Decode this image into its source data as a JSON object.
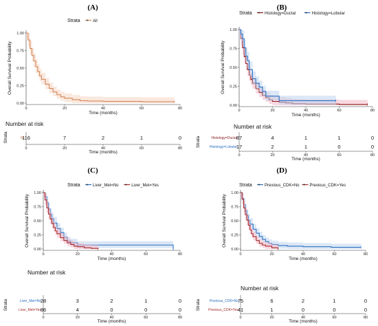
{
  "colors": {
    "all": "#D2875A",
    "ductal": "#8B1A1A",
    "lobular": "#2A6FC0",
    "no": "#2A6FC0",
    "yes": "#A52A2A",
    "ci_all": "#F5D5C2",
    "ci_red": "#F4B8C8",
    "ci_blue": "#BFD5F0"
  },
  "chart_data": [
    {
      "id": "A",
      "type": "line",
      "panel_label": "(A)",
      "xlabel": "Time (months)",
      "ylabel": "Overall Survival Probability",
      "xlim": [
        0,
        80
      ],
      "ylim": [
        0,
        1
      ],
      "xticks": [
        "0",
        "20",
        "40",
        "60",
        "80"
      ],
      "yticks": [
        "0.00",
        "0.25",
        "0.50",
        "0.75",
        "1.00"
      ],
      "legend_title": "Strata",
      "series": [
        {
          "name": "All",
          "color_key": "all",
          "ci_key": "ci_all",
          "x": [
            0,
            1,
            2,
            3,
            4,
            5,
            6,
            7,
            8,
            10,
            12,
            14,
            16,
            18,
            20,
            24,
            28,
            32,
            40,
            50,
            60,
            77
          ],
          "y": [
            1.0,
            0.9,
            0.78,
            0.68,
            0.6,
            0.52,
            0.45,
            0.39,
            0.34,
            0.27,
            0.21,
            0.16,
            0.12,
            0.09,
            0.07,
            0.05,
            0.035,
            0.03,
            0.025,
            0.025,
            0.02,
            0.02
          ]
        }
      ],
      "risk_table": {
        "title": "Number at risk",
        "strata_label": "Strata",
        "rows": [
          {
            "label": "All",
            "color_key": "all",
            "counts": [
              "116",
              "7",
              "2",
              "1",
              "0"
            ]
          }
        ],
        "xticks": [
          "0",
          "20",
          "40",
          "60",
          "80"
        ],
        "xlabel": "Time (months)"
      }
    },
    {
      "id": "B",
      "type": "line",
      "panel_label": "(B)",
      "xlabel": "Time (months)",
      "ylabel": "Overall Survival Probability",
      "xlim": [
        0,
        80
      ],
      "ylim": [
        0,
        1
      ],
      "xticks": [
        "0",
        "20",
        "40",
        "60",
        "80"
      ],
      "yticks": [
        "0.00",
        "0.25",
        "0.50",
        "0.75",
        "1.00"
      ],
      "legend_title": "Strata",
      "series": [
        {
          "name": "Histology=Ductal",
          "color_key": "ductal",
          "ci_key": "ci_red",
          "x": [
            0,
            1,
            2,
            3,
            4,
            5,
            6,
            7,
            8,
            10,
            12,
            14,
            16,
            18,
            20,
            24,
            28,
            32,
            40,
            60,
            77
          ],
          "y": [
            1.0,
            0.88,
            0.76,
            0.64,
            0.55,
            0.47,
            0.4,
            0.34,
            0.29,
            0.22,
            0.17,
            0.13,
            0.1,
            0.07,
            0.05,
            0.04,
            0.03,
            0.02,
            0.015,
            0.01,
            0.01
          ]
        },
        {
          "name": "Histology=Lobular",
          "color_key": "lobular",
          "ci_key": "ci_blue",
          "x": [
            0,
            1,
            2,
            3,
            4,
            5,
            6,
            8,
            10,
            12,
            14,
            16,
            20,
            24,
            28,
            58
          ],
          "y": [
            1.0,
            0.94,
            0.88,
            0.76,
            0.65,
            0.59,
            0.47,
            0.35,
            0.29,
            0.24,
            0.18,
            0.12,
            0.12,
            0.06,
            0.06,
            0.06
          ]
        }
      ],
      "risk_table": {
        "title": "Number at risk",
        "strata_label": "Strata",
        "rows": [
          {
            "label": "Histology=Ductal",
            "color_key": "ductal",
            "counts": [
              "87",
              "4",
              "1",
              "1",
              "0"
            ]
          },
          {
            "label": "Histology=Lobular",
            "color_key": "lobular",
            "counts": [
              "17",
              "2",
              "1",
              "0",
              "0"
            ]
          }
        ],
        "xticks": [
          "0",
          "20",
          "40",
          "60",
          "80"
        ],
        "xlabel": "Time (months)"
      }
    },
    {
      "id": "C",
      "type": "line",
      "panel_label": "(C)",
      "xlabel": "Time (months)",
      "ylabel": "Overall Survival Probability",
      "xlim": [
        0,
        80
      ],
      "ylim": [
        0,
        1
      ],
      "xticks": [
        "0",
        "20",
        "40",
        "60",
        "80"
      ],
      "yticks": [
        "0.00",
        "0.25",
        "0.50",
        "0.75",
        "1.00"
      ],
      "legend_title": "Strata",
      "series": [
        {
          "name": "Liver_Met=No",
          "color_key": "no",
          "ci_key": "ci_blue",
          "x": [
            0,
            1,
            2,
            3,
            4,
            5,
            6,
            8,
            10,
            12,
            14,
            16,
            20,
            24,
            30,
            58,
            76
          ],
          "y": [
            1.0,
            0.93,
            0.82,
            0.71,
            0.61,
            0.54,
            0.46,
            0.36,
            0.29,
            0.21,
            0.14,
            0.11,
            0.07,
            0.07,
            0.07,
            0.07,
            0.0
          ]
        },
        {
          "name": "Liver_Met=Yes",
          "color_key": "yes",
          "ci_key": "ci_red",
          "x": [
            0,
            1,
            2,
            3,
            4,
            5,
            6,
            7,
            8,
            10,
            12,
            14,
            16,
            18,
            20,
            24,
            28,
            32
          ],
          "y": [
            1.0,
            0.87,
            0.73,
            0.62,
            0.53,
            0.45,
            0.38,
            0.32,
            0.27,
            0.2,
            0.15,
            0.11,
            0.08,
            0.05,
            0.04,
            0.02,
            0.01,
            0.0
          ]
        }
      ],
      "risk_table": {
        "title": "Number at risk",
        "strata_label": "Strata",
        "rows": [
          {
            "label": "Liver_Met=No",
            "color_key": "no",
            "counts": [
              "28",
              "3",
              "2",
              "1",
              "0"
            ]
          },
          {
            "label": "Liver_Met=Yes",
            "color_key": "yes",
            "counts": [
              "86",
              "4",
              "0",
              "0",
              "0"
            ]
          }
        ],
        "xticks": [
          "0",
          "20",
          "40",
          "60",
          "80"
        ],
        "xlabel": "Time (months)"
      }
    },
    {
      "id": "D",
      "type": "line",
      "panel_label": "(D)",
      "xlabel": "Time (months)",
      "ylabel": "Overall Survival Probability",
      "xlim": [
        0,
        80
      ],
      "ylim": [
        0,
        1
      ],
      "xticks": [
        "0",
        "20",
        "40",
        "60",
        "80"
      ],
      "yticks": [
        "0.00",
        "0.25",
        "0.50",
        "0.75",
        "1.00"
      ],
      "legend_title": "Strata",
      "series": [
        {
          "name": "Previous_CDK=No",
          "color_key": "no",
          "ci_key": "ci_blue",
          "x": [
            0,
            1,
            2,
            3,
            4,
            5,
            6,
            8,
            10,
            12,
            14,
            16,
            18,
            20,
            24,
            30,
            40,
            58,
            77
          ],
          "y": [
            1.0,
            0.9,
            0.79,
            0.68,
            0.59,
            0.51,
            0.44,
            0.35,
            0.28,
            0.22,
            0.17,
            0.13,
            0.1,
            0.08,
            0.06,
            0.05,
            0.04,
            0.03,
            0.03
          ]
        },
        {
          "name": "Previous_CDK=Yes",
          "color_key": "yes",
          "ci_key": "ci_red",
          "x": [
            0,
            1,
            2,
            3,
            4,
            5,
            6,
            7,
            8,
            10,
            12,
            14,
            16,
            18,
            20,
            24
          ],
          "y": [
            1.0,
            0.88,
            0.73,
            0.61,
            0.51,
            0.42,
            0.34,
            0.27,
            0.22,
            0.15,
            0.1,
            0.07,
            0.05,
            0.05,
            0.02,
            0.0
          ]
        }
      ],
      "risk_table": {
        "title": "Number at risk",
        "strata_label": "Strata",
        "rows": [
          {
            "label": "Previous_CDK=No",
            "color_key": "no",
            "counts": [
              "75",
              "6",
              "2",
              "1",
              "0"
            ]
          },
          {
            "label": "Previous_CDK=Yes",
            "color_key": "yes",
            "counts": [
              "41",
              "1",
              "0",
              "0",
              "0"
            ]
          }
        ],
        "xticks": [
          "0",
          "20",
          "40",
          "60",
          "80"
        ],
        "xlabel": "Time (months)"
      }
    }
  ]
}
